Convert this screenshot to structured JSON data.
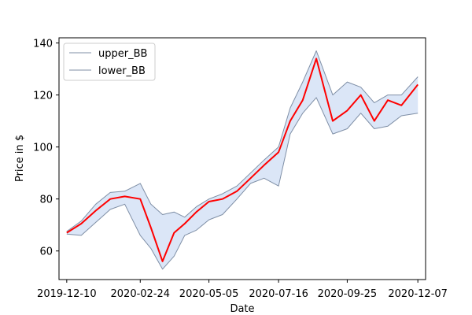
{
  "chart_data": {
    "type": "line",
    "title": "",
    "xlabel": "Date",
    "ylabel": "Price in $",
    "x_ticks": [
      "2019-12-10",
      "2020-02-24",
      "2020-05-05",
      "2020-07-16",
      "2020-09-25",
      "2020-12-07"
    ],
    "y_ticks": [
      60,
      80,
      100,
      120,
      140
    ],
    "ylim": [
      49,
      142
    ],
    "xlim": [
      "2019-12-02",
      "2020-12-15"
    ],
    "grid": false,
    "legend": {
      "placement": "top-left",
      "entries": [
        "upper_BB",
        "lower_BB"
      ]
    },
    "colors": {
      "price": "#ff0000",
      "band_line": "#7f8fa6",
      "band_fill": "#dbe6f7"
    },
    "x": [
      "2019-12-10",
      "2019-12-25",
      "2020-01-09",
      "2020-01-24",
      "2020-02-08",
      "2020-02-24",
      "2020-03-06",
      "2020-03-18",
      "2020-03-30",
      "2020-04-10",
      "2020-04-22",
      "2020-05-05",
      "2020-05-19",
      "2020-06-03",
      "2020-06-17",
      "2020-07-01",
      "2020-07-16",
      "2020-07-28",
      "2020-08-10",
      "2020-08-24",
      "2020-09-10",
      "2020-09-25",
      "2020-10-09",
      "2020-10-23",
      "2020-11-06",
      "2020-11-20",
      "2020-12-07"
    ],
    "series": [
      {
        "name": "upper_BB",
        "values": [
          67.5,
          71.5,
          78,
          82.5,
          83,
          86,
          78,
          74,
          75,
          73,
          77,
          80,
          82,
          85,
          90,
          95,
          100,
          115,
          125,
          137,
          120,
          125,
          123,
          117,
          120,
          120,
          127
        ]
      },
      {
        "name": "lower_BB",
        "values": [
          66.5,
          66,
          71,
          76,
          78,
          66,
          61,
          53,
          58,
          66,
          68,
          72,
          74,
          80,
          86,
          88,
          85,
          105,
          113,
          119,
          105,
          107,
          113,
          107,
          108,
          112,
          113
        ]
      },
      {
        "name": "",
        "values": [
          67,
          70.5,
          75.5,
          80,
          81,
          80,
          69,
          56,
          67,
          70.5,
          75,
          79,
          80,
          83,
          88,
          93,
          98,
          110,
          118,
          134,
          110,
          114,
          120,
          110,
          118,
          116,
          124
        ]
      }
    ]
  }
}
